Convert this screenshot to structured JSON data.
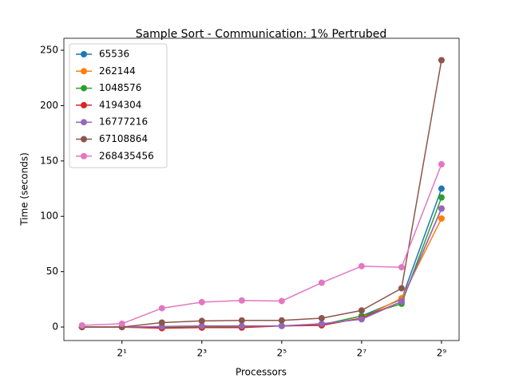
{
  "chart_data": {
    "type": "line",
    "title": "Sample Sort - Communication: 1% Pertrubed",
    "x_label": "Processors",
    "y_label": "Time (seconds)",
    "x": [
      1,
      2,
      4,
      8,
      16,
      32,
      64,
      128,
      256,
      512
    ],
    "xscale": "log2",
    "xlim": [
      0.73,
      695
    ],
    "ylim": [
      -12.2,
      260.8
    ],
    "xticks": [
      {
        "value": 2,
        "label": "2¹"
      },
      {
        "value": 8,
        "label": "2³"
      },
      {
        "value": 32,
        "label": "2⁵"
      },
      {
        "value": 128,
        "label": "2⁷"
      },
      {
        "value": 512,
        "label": "2⁹"
      }
    ],
    "yticks": [
      0,
      50,
      100,
      150,
      200,
      250
    ],
    "legend": "upper left",
    "series": [
      {
        "name": "65536",
        "color": "#1f77b4",
        "values": [
          0,
          0,
          0,
          0.5,
          0.5,
          1,
          2,
          10,
          25,
          125
        ]
      },
      {
        "name": "262144",
        "color": "#ff7f0e",
        "values": [
          0,
          0,
          -1,
          0,
          0,
          1,
          2,
          8,
          26,
          98
        ]
      },
      {
        "name": "1048576",
        "color": "#2ca02c",
        "values": [
          0,
          0,
          0,
          0.5,
          0.5,
          1,
          2,
          10,
          21,
          117
        ]
      },
      {
        "name": "4194304",
        "color": "#d62728",
        "values": [
          0,
          0,
          -1,
          -0.5,
          -0.5,
          1,
          1.5,
          8,
          23,
          107
        ]
      },
      {
        "name": "16777216",
        "color": "#9467bd",
        "values": [
          0,
          0,
          0.5,
          1,
          1,
          1,
          3,
          7,
          23,
          107
        ]
      },
      {
        "name": "67108864",
        "color": "#8c564b",
        "values": [
          0,
          0,
          4,
          5.5,
          6,
          6,
          8,
          15,
          35,
          241
        ]
      },
      {
        "name": "268435456",
        "color": "#e377c2",
        "values": [
          1.5,
          3,
          17,
          22.5,
          24,
          23.5,
          40,
          55,
          54,
          147
        ]
      }
    ]
  }
}
